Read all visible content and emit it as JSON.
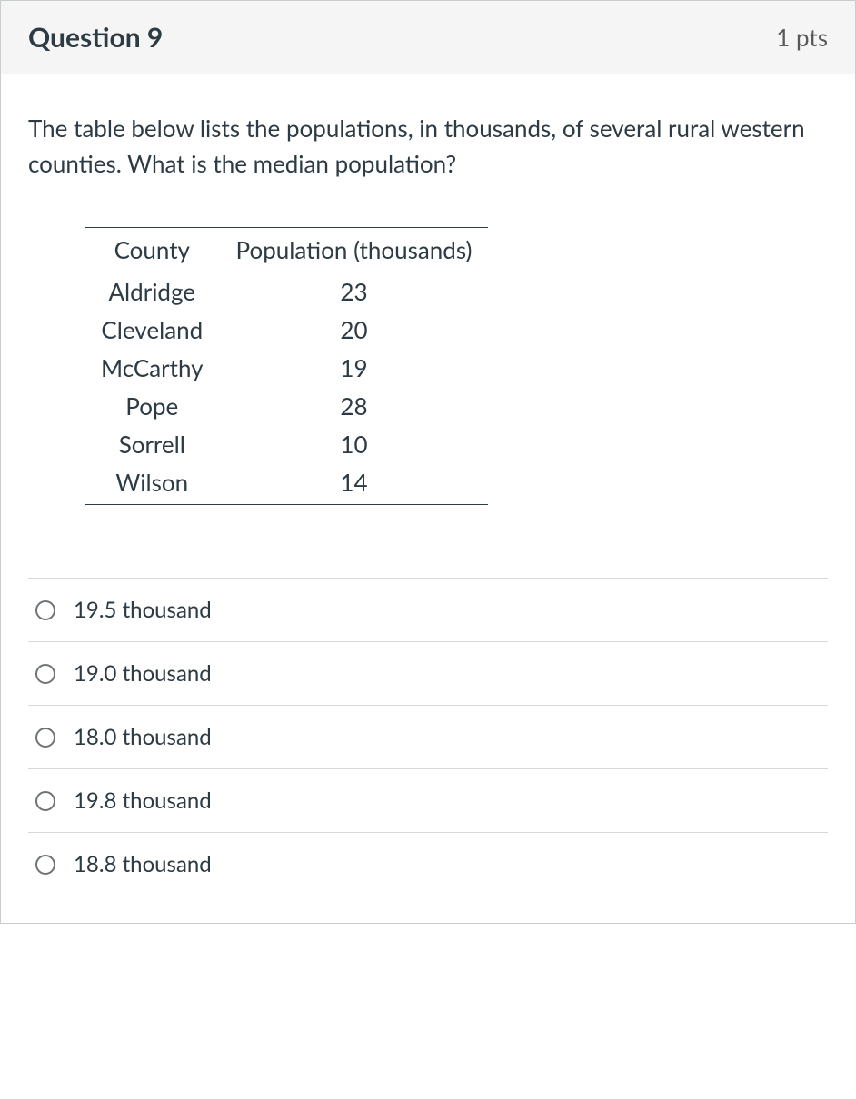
{
  "question": {
    "title": "Question 9",
    "points": "1 pts",
    "prompt": "The table below lists the populations, in thousands, of several rural western counties. What is the median population?"
  },
  "table": {
    "columns": [
      "County",
      "Population (thousands)"
    ],
    "rows": [
      [
        "Aldridge",
        "23"
      ],
      [
        "Cleveland",
        "20"
      ],
      [
        "McCarthy",
        "19"
      ],
      [
        "Pope",
        "28"
      ],
      [
        "Sorrell",
        "10"
      ],
      [
        "Wilson",
        "14"
      ]
    ],
    "border_color": "#2d3b45",
    "font_size_pt": 20,
    "text_color": "#2d3b45"
  },
  "answers": [
    {
      "label": "19.5 thousand"
    },
    {
      "label": "19.0 thousand"
    },
    {
      "label": "18.0 thousand"
    },
    {
      "label": "19.8 thousand"
    },
    {
      "label": "18.8 thousand"
    }
  ],
  "styles": {
    "card_border_color": "#c7cdd1",
    "header_bg": "#f5f5f5",
    "divider_color": "#d6d9dc",
    "radio_border_color": "#6e7377",
    "text_color": "#2d3b45",
    "points_color": "#595959"
  }
}
